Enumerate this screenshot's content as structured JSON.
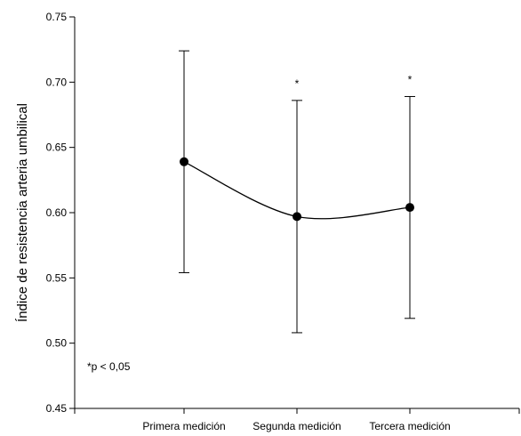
{
  "chart_data": {
    "type": "line",
    "categories": [
      "Primera medición",
      "Segunda medición",
      "Tercera medición"
    ],
    "values": [
      0.639,
      0.597,
      0.604
    ],
    "error_upper": [
      0.724,
      0.686,
      0.689
    ],
    "error_lower": [
      0.554,
      0.508,
      0.519
    ],
    "significance": [
      "",
      "*",
      "*"
    ],
    "ylabel": "Índice de resistencia arteria umbilical",
    "xlabel": "",
    "ylim": [
      0.45,
      0.75
    ],
    "yticks": [
      "0.45",
      "0.50",
      "0.55",
      "0.60",
      "0.65",
      "0.70",
      "0.75"
    ],
    "note": "*p < 0,05",
    "grid": false,
    "smooth_line": true
  }
}
